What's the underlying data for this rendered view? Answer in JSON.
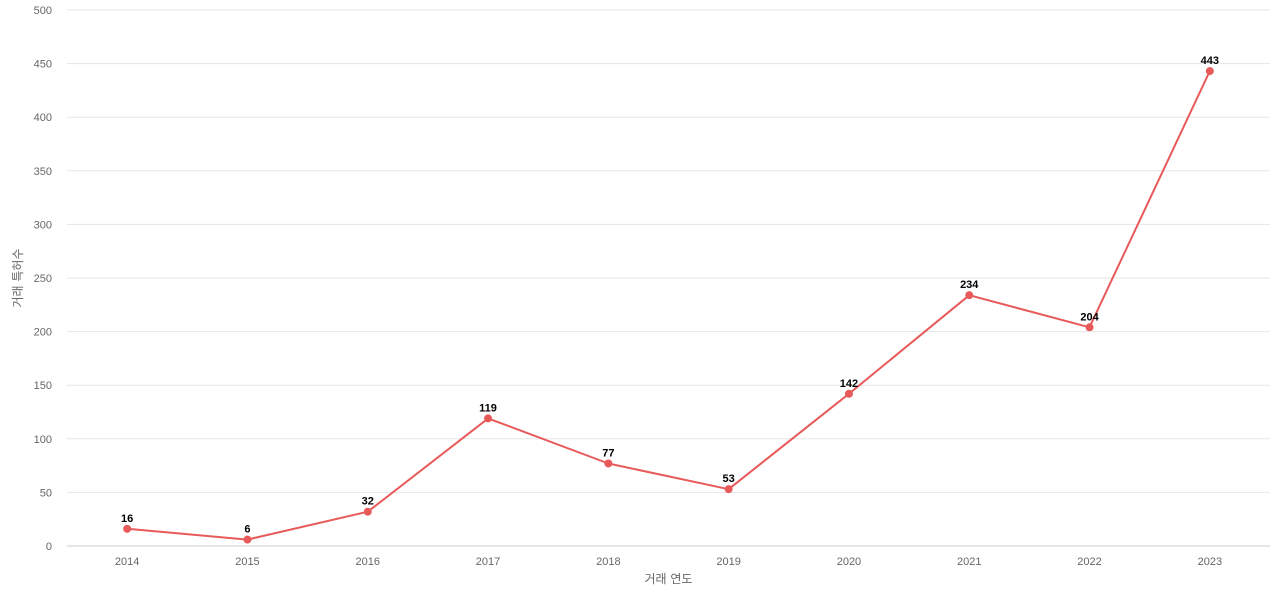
{
  "chart_data": {
    "type": "line",
    "title": "",
    "xlabel": "거래 연도",
    "ylabel": "거래 특허수",
    "categories": [
      "2014",
      "2015",
      "2016",
      "2017",
      "2018",
      "2019",
      "2020",
      "2021",
      "2022",
      "2023"
    ],
    "series": [
      {
        "values": [
          16,
          6,
          32,
          119,
          77,
          53,
          142,
          234,
          204,
          443
        ],
        "color": "#e85a5a"
      }
    ],
    "ylim": [
      0,
      500
    ],
    "yticks": [
      0,
      50,
      100,
      150,
      200,
      250,
      300,
      350,
      400,
      450,
      500
    ],
    "grid": true,
    "legend": "none",
    "data_labels": true
  }
}
